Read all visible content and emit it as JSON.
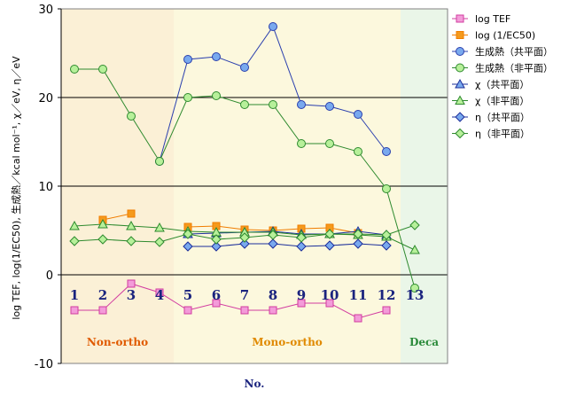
{
  "chart_data": {
    "type": "line",
    "ylabel": "log TEF, log(1/EC50), 生成熱／kcal mol⁻¹, χ／eV, η／eV",
    "xlabel": "No.",
    "ylim": [
      -10,
      30
    ],
    "yticks": [
      -10,
      0,
      10,
      20,
      30
    ],
    "grid": "horizontal",
    "legend_position": "right",
    "x": [
      1,
      2,
      3,
      4,
      5,
      6,
      7,
      8,
      9,
      10,
      11,
      12,
      13
    ],
    "x_tick_labels": [
      "1",
      "2",
      "3",
      "4",
      "5",
      "6",
      "7",
      "8",
      "9",
      "10",
      "11",
      "12",
      "13"
    ],
    "regions": [
      {
        "label": "Non-ortho",
        "from": 1,
        "to": 4,
        "color": "#fbf0d6",
        "label_color": "#e05a00"
      },
      {
        "label": "Mono-ortho",
        "from": 5,
        "to": 12,
        "color": "#fcf8dd",
        "label_color": "#e08a00"
      },
      {
        "label": "Deca",
        "from": 13,
        "to": 13,
        "color": "#eaf6e8",
        "label_color": "#2a8a3a"
      }
    ],
    "series": [
      {
        "name": "log TEF",
        "marker": "square",
        "color": "#d23ca0",
        "fill": "#f39bd9",
        "values": [
          -4,
          -4,
          -1,
          -2,
          -4,
          -3.2,
          -4,
          -4,
          -3.2,
          -3.2,
          -4.9,
          -4,
          null
        ]
      },
      {
        "name": "log (1/EC50)",
        "marker": "square",
        "color": "#f07d00",
        "fill": "#f59a1c",
        "values": [
          null,
          6.2,
          6.9,
          null,
          5.4,
          5.5,
          5.1,
          5.0,
          5.2,
          5.3,
          4.7,
          null,
          null
        ]
      },
      {
        "name": "生成熱（共平面）",
        "marker": "circle",
        "color": "#2a3fae",
        "fill": "#79a9ee",
        "values": [
          null,
          null,
          null,
          12.8,
          24.3,
          24.6,
          23.4,
          28.0,
          19.2,
          19.0,
          18.1,
          13.9,
          null
        ]
      },
      {
        "name": "生成熱（非平面）",
        "marker": "circle",
        "color": "#2e8a2e",
        "fill": "#b7f09a",
        "values": [
          23.2,
          23.2,
          17.9,
          12.8,
          20.0,
          20.2,
          19.2,
          19.2,
          14.8,
          14.8,
          13.9,
          9.7,
          -1.5
        ]
      },
      {
        "name": "χ（共平面）",
        "marker": "triangle",
        "color": "#1b2e9a",
        "fill": "#79a9ee",
        "values": [
          null,
          null,
          null,
          null,
          4.6,
          4.7,
          4.8,
          4.9,
          4.6,
          4.6,
          4.9,
          4.5,
          null
        ]
      },
      {
        "name": "χ（非平面）",
        "marker": "triangle",
        "color": "#2e8a2e",
        "fill": "#b7f09a",
        "values": [
          5.5,
          5.7,
          5.5,
          5.3,
          4.9,
          4.8,
          4.8,
          4.8,
          4.5,
          4.6,
          4.5,
          4.3,
          2.8
        ]
      },
      {
        "name": "η（共平面）",
        "marker": "diamond",
        "color": "#1b2e9a",
        "fill": "#79a9ee",
        "values": [
          null,
          null,
          null,
          null,
          3.2,
          3.2,
          3.5,
          3.5,
          3.2,
          3.3,
          3.5,
          3.3,
          null
        ]
      },
      {
        "name": "η（非平面）",
        "marker": "diamond",
        "color": "#2e8a2e",
        "fill": "#b7f09a",
        "values": [
          3.8,
          4.0,
          3.8,
          3.7,
          4.6,
          4.0,
          4.2,
          4.5,
          4.2,
          4.6,
          4.6,
          4.5,
          5.6
        ]
      }
    ]
  }
}
